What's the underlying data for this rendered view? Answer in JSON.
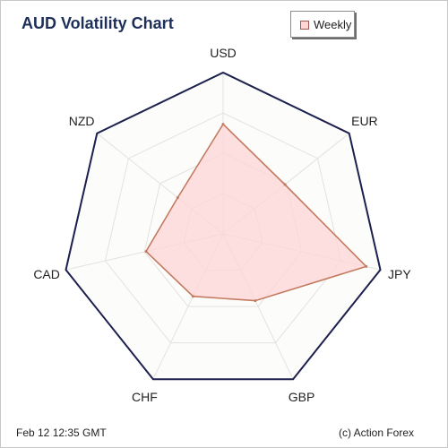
{
  "header": {
    "title": "AUD Volatility Chart"
  },
  "legend": {
    "label": "Weekly"
  },
  "footer": {
    "timestamp": "Feb 12  12:35 GMT",
    "credit": "(c) Action Forex"
  },
  "colors": {
    "outline": "#1d1f4f",
    "grid": "#e2e2e2",
    "plot_background": "#fcfcfa",
    "series_fill": "#ffd6d6",
    "series_stroke": "#c47a60"
  },
  "chart_data": {
    "type": "radar",
    "title": "AUD Volatility Chart",
    "categories": [
      "USD",
      "EUR",
      "JPY",
      "GBP",
      "CHF",
      "CAD",
      "NZD"
    ],
    "series": [
      {
        "name": "Weekly",
        "values": [
          0.68,
          0.49,
          0.91,
          0.46,
          0.43,
          0.49,
          0.36
        ]
      }
    ],
    "rlim": [
      0,
      1
    ],
    "grid_levels": 4,
    "legend_position": "top-right"
  }
}
